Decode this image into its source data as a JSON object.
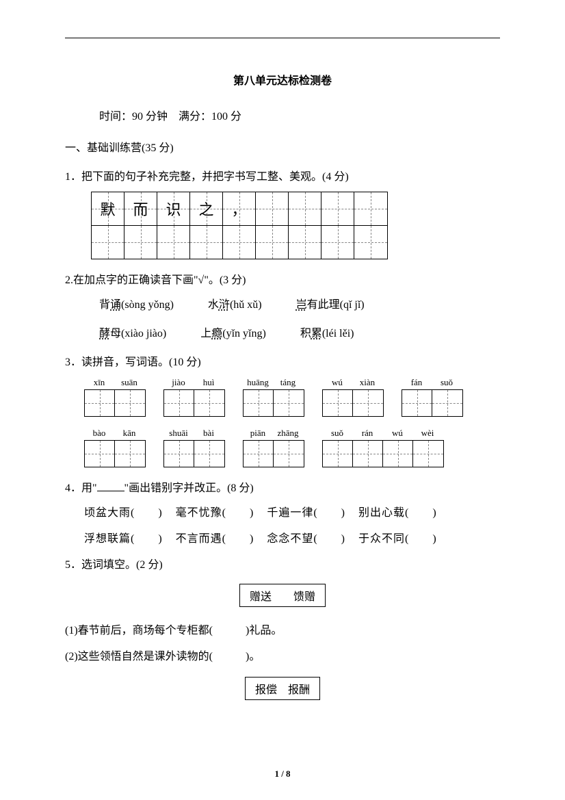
{
  "title": "第八单元达标检测卷",
  "time_score": "时间：90 分钟　满分：100 分",
  "section1": "一、基础训练营(35 分)",
  "q1": {
    "text": "1．把下面的句子补充完整，并把字书写工整、美观。(4 分)",
    "cells_row1": [
      "默",
      "而",
      "识",
      "之",
      "，",
      "",
      "",
      "",
      ""
    ],
    "cols": 9
  },
  "q2": {
    "text": "2.在加点字的正确读音下画\"√\"。(3 分)",
    "row1": [
      {
        "pre": "背",
        "dot": "诵",
        "pinyin": "(sòng yǒng)"
      },
      {
        "pre": "水",
        "dot": "浒",
        "pinyin": "(hǔ xǔ)"
      },
      {
        "pre": "",
        "dot": "岂",
        "post": "有此理",
        "pinyin": "(qǐ jǐ)"
      }
    ],
    "row2": [
      {
        "pre": "",
        "dot": "酵",
        "post": "母",
        "pinyin": "(xiào jiào)"
      },
      {
        "pre": "上",
        "dot": "瘾",
        "pinyin": "(yǐn yǐng)"
      },
      {
        "pre": "积",
        "dot": "累",
        "pinyin": "(léi lěi)"
      }
    ]
  },
  "q3": {
    "text": "3．读拼音，写词语。(10 分)",
    "row1": [
      [
        "xīn",
        "suān"
      ],
      [
        "jiào",
        "huì"
      ],
      [
        "huāng",
        "táng"
      ],
      [
        "wú",
        "xiàn"
      ],
      [
        "fán",
        "suǒ"
      ]
    ],
    "row2": [
      [
        "bào",
        "kān"
      ],
      [
        "shuāi",
        "bài"
      ],
      [
        "piān",
        "zhāng"
      ],
      [
        "suǒ",
        "rán",
        "wú",
        "wèi"
      ]
    ]
  },
  "q4": {
    "text_pre": "4．用\"",
    "text_post": "\"画出错别字并改正。(8 分)",
    "row1": [
      "顷盆大雨(　　)",
      "毫不忧豫(　　)",
      "千遍一律(　　)",
      "别出心载(　　)"
    ],
    "row2": [
      "浮想联篇(　　)",
      "不言而遇(　　)",
      "念念不望(　　)",
      "于众不同(　　)"
    ]
  },
  "q5": {
    "text": "5．选词填空。(2 分)",
    "box1": "赠送　　馈赠",
    "sub1": "(1)春节前后，商场每个专柜都(　　　)礼品。",
    "sub2": "(2)这些领悟自然是课外读物的(　　　)。",
    "box2": "报偿　报酬"
  },
  "page_num": "1 / 8"
}
